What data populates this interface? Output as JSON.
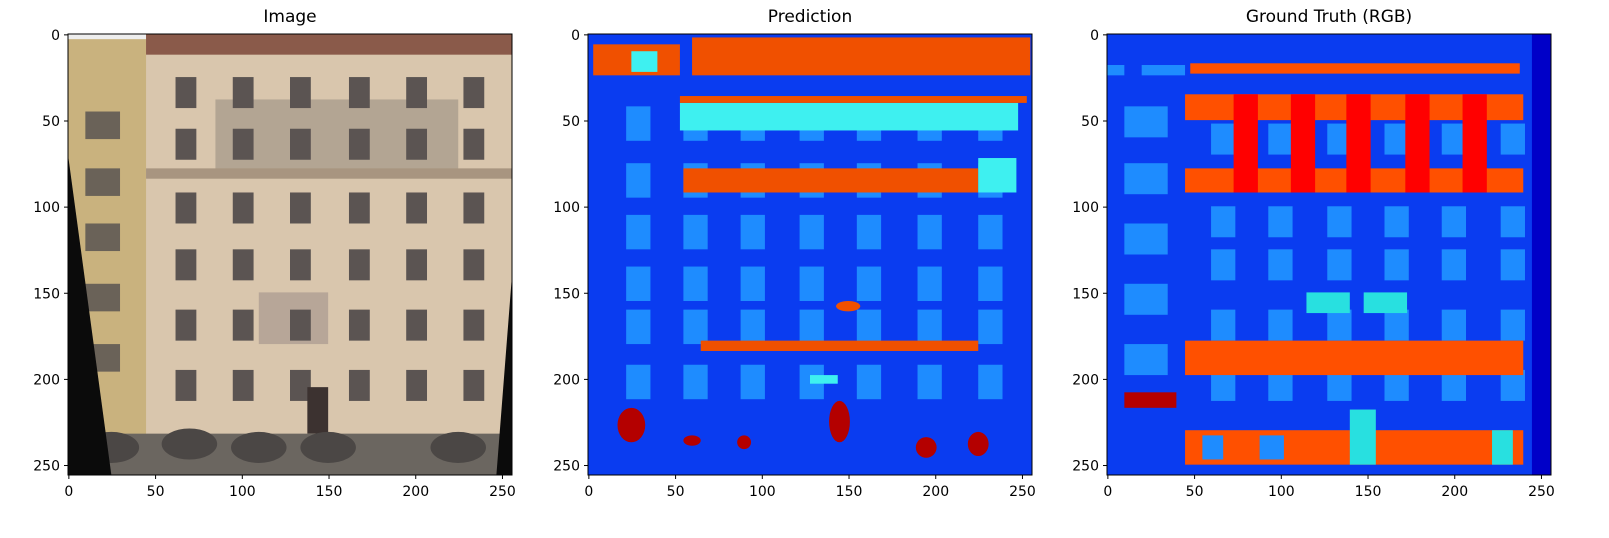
{
  "chart_data": [
    {
      "type": "image",
      "title": "Image",
      "xlim": [
        -0.5,
        255.5
      ],
      "ylim": [
        255.5,
        -0.5
      ],
      "xticks": [
        0,
        50,
        100,
        150,
        200,
        250
      ],
      "yticks": [
        0,
        50,
        100,
        150,
        200,
        250
      ]
    },
    {
      "type": "image",
      "title": "Prediction",
      "xlim": [
        -0.5,
        255.5
      ],
      "ylim": [
        255.5,
        -0.5
      ],
      "xticks": [
        0,
        50,
        100,
        150,
        200,
        250
      ],
      "yticks": [
        0,
        50,
        100,
        150,
        200,
        250
      ]
    },
    {
      "type": "image",
      "title": "Ground Truth (RGB)",
      "xlim": [
        -0.5,
        255.5
      ],
      "ylim": [
        255.5,
        -0.5
      ],
      "xticks": [
        0,
        50,
        100,
        150,
        200,
        250
      ],
      "yticks": [
        0,
        50,
        100,
        150,
        200,
        250
      ]
    }
  ]
}
